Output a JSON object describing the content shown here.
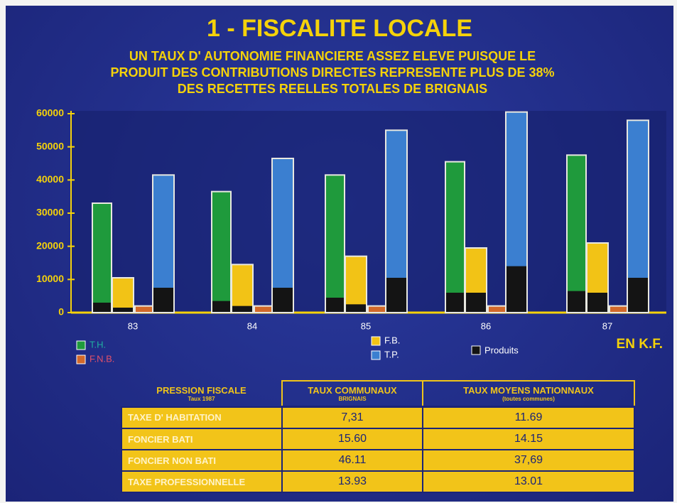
{
  "chart_data": {
    "type": "bar",
    "title": "1 - FISCALITE LOCALE",
    "subtitle": [
      "UN TAUX D' AUTONOMIE FINANCIERE ASSEZ ELEVE PUISQUE LE",
      "PRODUIT DES CONTRIBUTIONS DIRECTES REPRESENTE PLUS DE 38%",
      "DES RECETTES REELLES TOTALES DE BRIGNAIS"
    ],
    "unit_label": "EN K.F.",
    "categories": [
      "83",
      "84",
      "85",
      "86",
      "87"
    ],
    "series": [
      {
        "name": "T.H.",
        "color": "#1f9a3c",
        "values": [
          33000,
          36500,
          41500,
          45500,
          47500
        ]
      },
      {
        "name": "F.B.",
        "color": "#f2c316",
        "values": [
          10500,
          14500,
          17000,
          19500,
          21000
        ]
      },
      {
        "name": "F.N.B.",
        "color": "#d2692a",
        "values": [
          2000,
          2000,
          2000,
          2000,
          2000
        ]
      },
      {
        "name": "T.P.",
        "color": "#3b7fd0",
        "values": [
          41500,
          46500,
          55000,
          60500,
          58000
        ]
      }
    ],
    "produits": {
      "name": "Produits",
      "color": "#141414",
      "values": [
        [
          3000,
          3500,
          4500,
          6000,
          6500
        ],
        [
          1500,
          2000,
          2500,
          6000,
          6000
        ],
        [
          null,
          null,
          null,
          null,
          null
        ],
        [
          7500,
          7500,
          10500,
          14000,
          10500
        ]
      ]
    },
    "ylim": [
      0,
      60000
    ],
    "yticks": [
      0,
      10000,
      20000,
      30000,
      40000,
      50000,
      60000
    ]
  },
  "table": {
    "corner": {
      "title": "PRESSION FISCALE",
      "subtitle": "Taux 1987"
    },
    "columns": [
      {
        "title": "TAUX COMMUNAUX",
        "subtitle": "BRIGNAIS"
      },
      {
        "title": "TAUX MOYENS NATIONNAUX",
        "subtitle": "(toutes communes)"
      }
    ],
    "rows": [
      [
        "TAXE D' HABITATION",
        "7,31",
        "11.69"
      ],
      [
        "FONCIER BATI",
        "15.60",
        "14.15"
      ],
      [
        "FONCIER NON BATI",
        "46.11",
        "37,69"
      ],
      [
        "TAXE PROFESSIONNELLE",
        "13.93",
        "13.01"
      ]
    ]
  }
}
